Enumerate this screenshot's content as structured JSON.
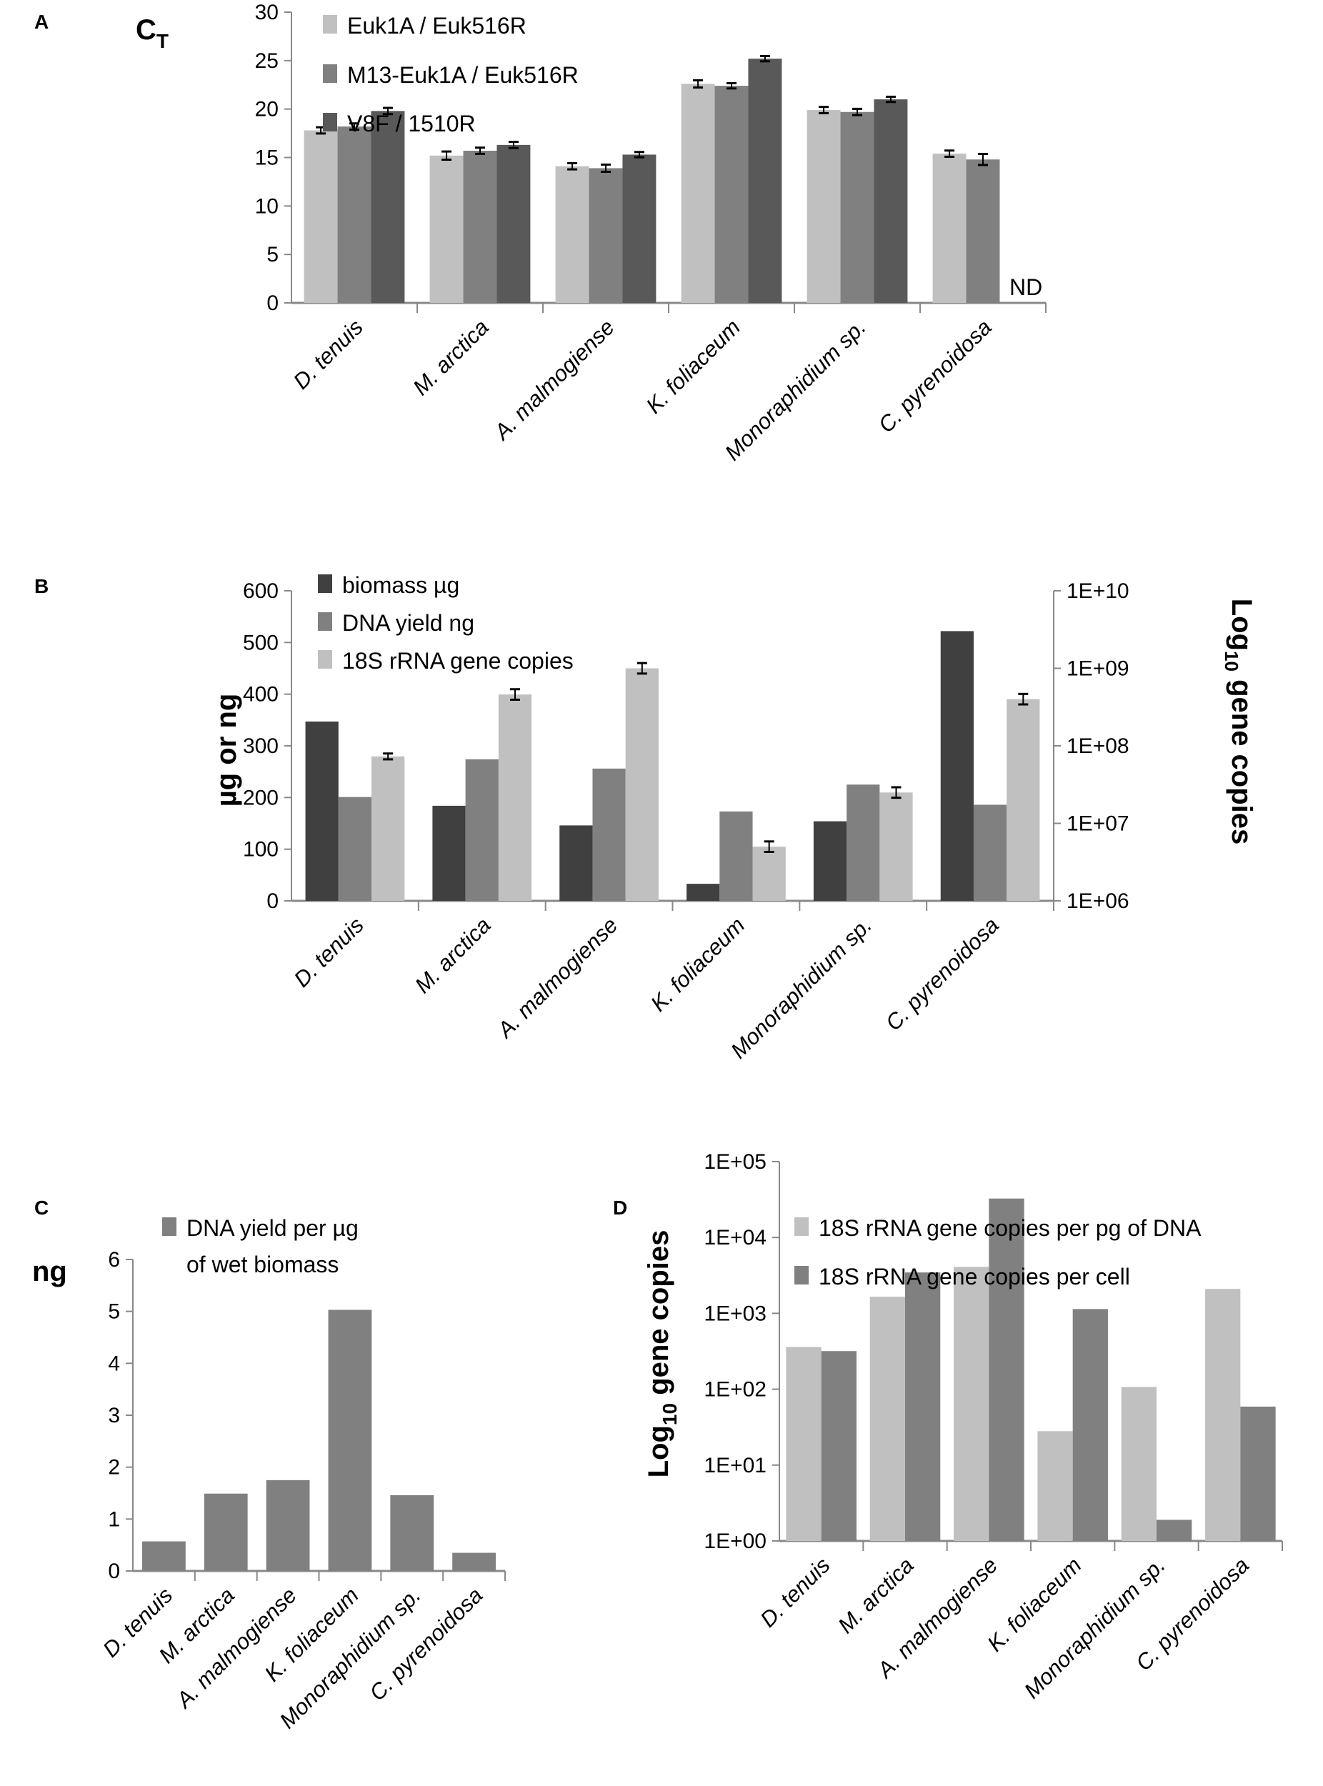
{
  "chart_data": [
    {
      "panel": "A",
      "type": "bar",
      "ylabel": {
        "main": "C",
        "sub": "T"
      },
      "ylim": [
        0,
        30
      ],
      "yticks": [
        "0",
        "5",
        "10",
        "15",
        "20",
        "25",
        "30"
      ],
      "categories": [
        "D. tenuis",
        "M. arctica",
        "A. malmogiense",
        "K. foliaceum",
        "Monoraphidium sp.",
        "C. pyrenoidosa"
      ],
      "series": [
        {
          "name": "Euk1A / Euk516R",
          "color": "#c0c0c0",
          "values": [
            17.8,
            15.2,
            14.1,
            22.6,
            19.9,
            15.4
          ],
          "errors": [
            0.1,
            0.2,
            0.1,
            0.15,
            0.1,
            0.1
          ]
        },
        {
          "name": "M13-Euk1A / Euk516R",
          "color": "#808080",
          "values": [
            18.2,
            15.7,
            13.9,
            22.4,
            19.7,
            14.8
          ],
          "errors": [
            0.1,
            0.1,
            0.15,
            0.05,
            0.1,
            0.35
          ]
        },
        {
          "name": "V8F / 1510R",
          "color": "#595959",
          "values": [
            19.8,
            16.3,
            15.3,
            25.2,
            21.0,
            null
          ],
          "errors": [
            0.1,
            0.1,
            0.05,
            0.05,
            0.05,
            null
          ]
        }
      ],
      "annotations": [
        "ND"
      ]
    },
    {
      "panel": "B",
      "type": "bar",
      "ylabel": "µg or ng",
      "ylabel_right": {
        "main": "Log",
        "sub": "10",
        "rest": " gene copies"
      },
      "ylim": [
        0,
        600
      ],
      "yticks": [
        "0",
        "100",
        "200",
        "300",
        "400",
        "500",
        "600"
      ],
      "ylim_right": [
        1000000.0,
        10000000000.0
      ],
      "yticks_right": [
        "1E+06",
        "1E+07",
        "1E+08",
        "1E+09",
        "1E+10"
      ],
      "categories": [
        "D. tenuis",
        "M. arctica",
        "A. malmogiense",
        "K. foliaceum",
        "Monoraphidium sp.",
        "C. pyrenoidosa"
      ],
      "series": [
        {
          "name": "biomass µg",
          "color": "#404040",
          "axis": "left",
          "values": [
            347,
            184,
            146,
            33,
            154,
            522
          ]
        },
        {
          "name": "DNA yield ng",
          "color": "#808080",
          "axis": "left",
          "values": [
            201,
            274,
            256,
            173,
            225,
            186
          ]
        },
        {
          "name": "18S rRNA gene copies",
          "color": "#c0c0c0",
          "axis": "right",
          "values": [
            73000000.0,
            460000000.0,
            1000000000.0,
            5000000.0,
            25000000.0,
            400000000.0
          ],
          "errors_log": [
            0.01,
            0.04,
            0.04,
            0.04,
            0.04,
            0.04
          ]
        }
      ]
    },
    {
      "panel": "C",
      "type": "bar",
      "ylabel": "ng",
      "ylim": [
        0,
        6
      ],
      "yticks": [
        "0",
        "1",
        "2",
        "3",
        "4",
        "5",
        "6"
      ],
      "categories": [
        "D. tenuis",
        "M. arctica",
        "A. malmogiense",
        "K. foliaceum",
        "Monoraphidium sp.",
        "C. pyrenoidosa"
      ],
      "series": [
        {
          "name_lines": [
            "DNA yield per µg",
            "of wet biomass"
          ],
          "color": "#808080",
          "values": [
            0.57,
            1.49,
            1.75,
            5.03,
            1.46,
            0.35
          ]
        }
      ]
    },
    {
      "panel": "D",
      "type": "bar",
      "ylabel": {
        "main": "Log",
        "sub": "10",
        "rest": " gene copies"
      },
      "ylim": [
        1,
        100000.0
      ],
      "yscale": "log",
      "yticks": [
        "1E+00",
        "1E+01",
        "1E+02",
        "1E+03",
        "1E+04",
        "1E+05"
      ],
      "categories": [
        "D. tenuis",
        "M. arctica",
        "A. malmogiense",
        "K. foliaceum",
        "Monoraphidium sp.",
        "C. pyrenoidosa"
      ],
      "series": [
        {
          "name": "18S rRNA gene copies per pg of DNA",
          "color": "#c0c0c0",
          "values": [
            360,
            1660,
            4100,
            28,
            107,
            2100
          ]
        },
        {
          "name": "18S rRNA gene copies per cell",
          "color": "#808080",
          "values": [
            318,
            3460,
            32600,
            1140,
            1.9,
            59
          ]
        }
      ]
    }
  ]
}
